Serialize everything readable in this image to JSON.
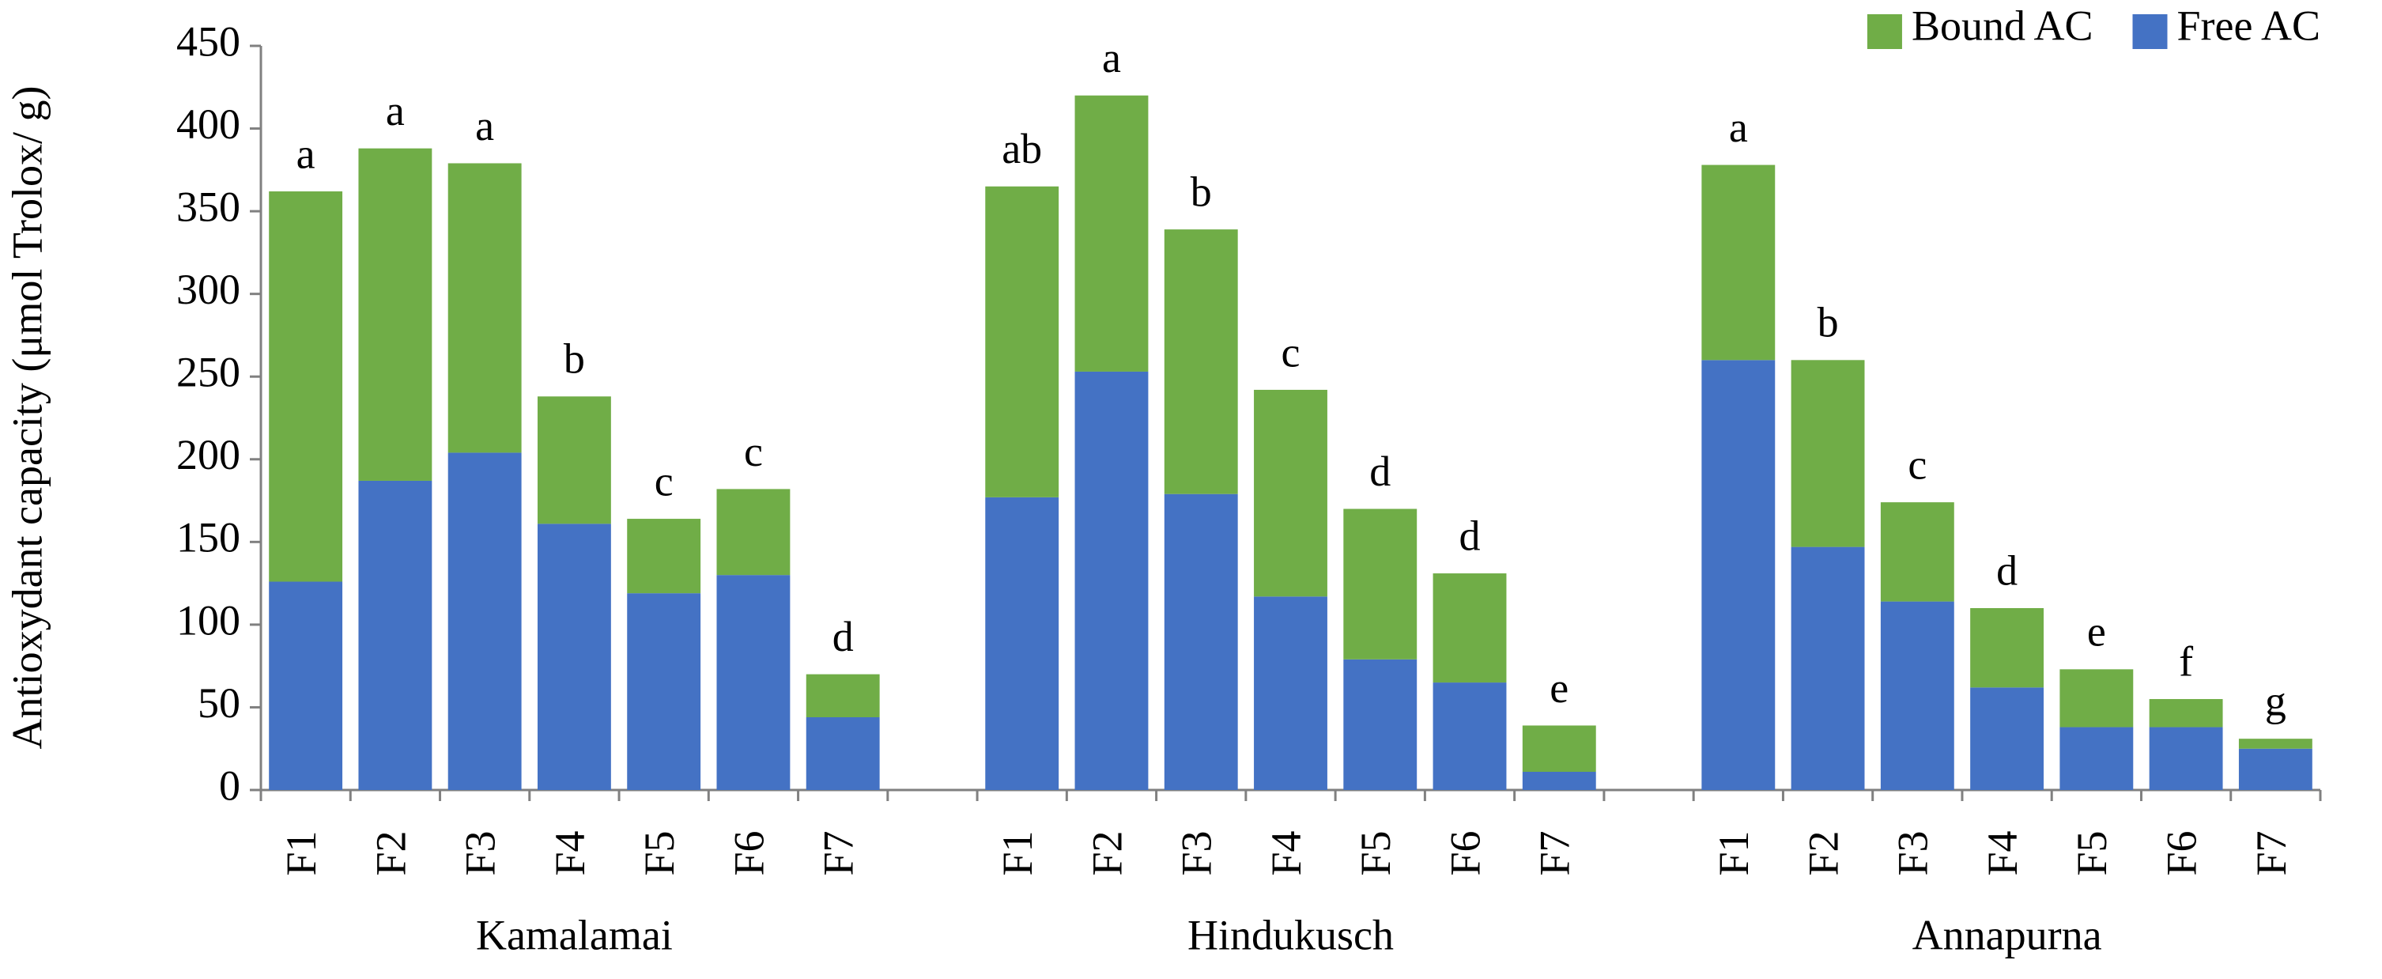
{
  "chart_data": {
    "type": "stacked_bar",
    "y_label": "Antioxydant capacity (μmol Trolox/ g)",
    "categories": [
      "F1",
      "F2",
      "F3",
      "F4",
      "F5",
      "F6",
      "F7",
      null,
      "F1",
      "F2",
      "F3",
      "F4",
      "F5",
      "F6",
      "F7",
      null,
      "F1",
      "F2",
      "F3",
      "F4",
      "F5",
      "F6",
      "F7"
    ],
    "group_labels": [
      "Kamalamai",
      "Hindukusch",
      "Annapurna"
    ],
    "series": [
      {
        "name": "Free AC",
        "color": "#4472c4",
        "values": [
          126,
          187,
          204,
          161,
          119,
          130,
          44,
          null,
          177,
          253,
          179,
          117,
          79,
          65,
          11,
          null,
          260,
          147,
          114,
          62,
          38,
          38,
          25
        ]
      },
      {
        "name": "Bound AC",
        "color": "#70ad47",
        "values": [
          236,
          201,
          175,
          77,
          45,
          52,
          26,
          null,
          188,
          167,
          160,
          125,
          91,
          66,
          28,
          null,
          118,
          113,
          60,
          48,
          35,
          17,
          6
        ]
      }
    ],
    "annotations": [
      "a",
      "a",
      "a",
      "b",
      "c",
      "c",
      "d",
      null,
      "ab",
      "a",
      "b",
      "c",
      "d",
      "d",
      "e",
      null,
      "a",
      "b",
      "c",
      "d",
      "e",
      "f",
      "g"
    ],
    "ylim": [
      0,
      450
    ],
    "yticks": [
      0,
      50,
      100,
      150,
      200,
      250,
      300,
      350,
      400,
      450
    ],
    "grid": false,
    "legend": "top-right"
  }
}
